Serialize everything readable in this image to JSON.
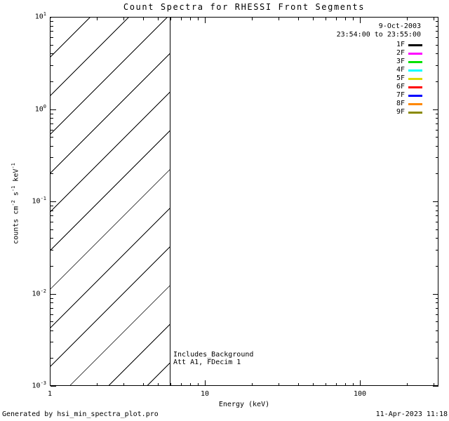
{
  "chart_data": {
    "type": "line",
    "title": "Count Spectra for RHESSI Front Segments",
    "xlabel": "Energy (keV)",
    "ylabel": "counts cm^-2 s^-1 keV^-1",
    "ylabel_parts": [
      {
        "text": "counts cm",
        "sup": "-2"
      },
      {
        "text": " s",
        "sup": "-1"
      },
      {
        "text": " keV",
        "sup": "-1"
      }
    ],
    "xscale": "log",
    "yscale": "log",
    "xlim": [
      1,
      320
    ],
    "ylim": [
      0.001,
      10
    ],
    "x_major_ticks": [
      1,
      10,
      100
    ],
    "x_major_tick_labels": [
      "1",
      "10",
      "100"
    ],
    "minor_tick_multiples": [
      2,
      3,
      4,
      5,
      6,
      7,
      8,
      9
    ],
    "y_major_tick_exponents": [
      1,
      0,
      -1,
      -2,
      -3
    ],
    "grid": false,
    "legend_position": "inside-top-right",
    "header": {
      "date": "9-Oct-2003",
      "time_range": "23:54:00 to 23:55:00"
    },
    "legend": [
      {
        "label": "1F",
        "color": "#000000"
      },
      {
        "label": "2F",
        "color": "#ff00ff"
      },
      {
        "label": "3F",
        "color": "#00e100"
      },
      {
        "label": "4F",
        "color": "#00ffff"
      },
      {
        "label": "5F",
        "color": "#dcdc00"
      },
      {
        "label": "6F",
        "color": "#ff0000"
      },
      {
        "label": "7F",
        "color": "#0000ff"
      },
      {
        "label": "8F",
        "color": "#ff8800"
      },
      {
        "label": "9F",
        "color": "#8a8a00"
      }
    ],
    "series": [],
    "series_note": "no spectra curves drawn in plot area; only hatched region and legend shown",
    "hatched_region": {
      "x_start": 1,
      "x_end": 6,
      "style": "diagonal-hatch-45deg"
    },
    "annotations": [
      "Includes_Background",
      "Att A1, FDecim 1"
    ]
  },
  "footer": {
    "generated_by": "Generated by hsi_min_spectra_plot.pro",
    "timestamp": "11-Apr-2023 11:18"
  }
}
